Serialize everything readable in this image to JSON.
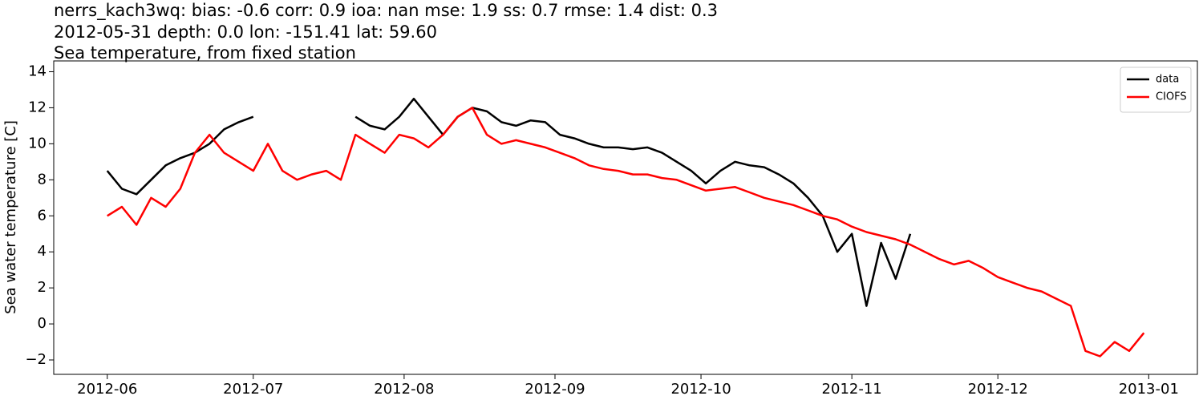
{
  "chart_data": {
    "type": "line",
    "title": "nerrs_kach3wq: bias: -0.6  corr: 0.9  ioa: nan  mse: 1.9  ss: 0.7  rmse: 1.4  dist: 0.3",
    "subtitle": "2012-05-31 depth: 0.0 lon: -151.41 lat: 59.60",
    "subtitle2": "Sea temperature, from fixed station",
    "y_label": "Sea water temperature [C]",
    "x": [
      "2012-06-01",
      "2012-06-04",
      "2012-06-07",
      "2012-06-10",
      "2012-06-13",
      "2012-06-16",
      "2012-06-19",
      "2012-06-22",
      "2012-06-25",
      "2012-06-28",
      "2012-07-01",
      "2012-07-04",
      "2012-07-07",
      "2012-07-10",
      "2012-07-13",
      "2012-07-16",
      "2012-07-19",
      "2012-07-22",
      "2012-07-25",
      "2012-07-28",
      "2012-07-31",
      "2012-08-03",
      "2012-08-06",
      "2012-08-09",
      "2012-08-12",
      "2012-08-15",
      "2012-08-18",
      "2012-08-21",
      "2012-08-24",
      "2012-08-27",
      "2012-08-30",
      "2012-09-02",
      "2012-09-05",
      "2012-09-08",
      "2012-09-11",
      "2012-09-14",
      "2012-09-17",
      "2012-09-20",
      "2012-09-23",
      "2012-09-26",
      "2012-09-29",
      "2012-10-02",
      "2012-10-05",
      "2012-10-08",
      "2012-10-11",
      "2012-10-14",
      "2012-10-17",
      "2012-10-20",
      "2012-10-23",
      "2012-10-26",
      "2012-10-29",
      "2012-11-01",
      "2012-11-04",
      "2012-11-07",
      "2012-11-10",
      "2012-11-13",
      "2012-11-16",
      "2012-11-19",
      "2012-11-22",
      "2012-11-25",
      "2012-11-28",
      "2012-12-01",
      "2012-12-04",
      "2012-12-07",
      "2012-12-10",
      "2012-12-13",
      "2012-12-16",
      "2012-12-19",
      "2012-12-22",
      "2012-12-25",
      "2012-12-28",
      "2012-12-31"
    ],
    "series": [
      {
        "name": "data",
        "color": "#000000",
        "values": [
          8.5,
          7.5,
          7.2,
          8.0,
          8.8,
          9.2,
          9.5,
          10.0,
          10.8,
          11.2,
          11.5,
          null,
          null,
          null,
          null,
          null,
          null,
          11.5,
          11.0,
          10.8,
          11.5,
          12.5,
          11.5,
          10.5,
          11.5,
          12.0,
          11.8,
          11.2,
          11.0,
          11.3,
          11.2,
          10.5,
          10.3,
          10.0,
          9.8,
          9.8,
          9.7,
          9.8,
          9.5,
          9.0,
          8.5,
          7.8,
          8.5,
          9.0,
          8.8,
          8.7,
          8.3,
          7.8,
          7.0,
          6.0,
          4.0,
          5.0,
          1.0,
          4.5,
          2.5,
          5.0,
          null,
          null,
          null,
          null,
          null,
          null,
          null,
          null,
          null,
          null,
          null,
          null,
          null,
          null,
          null,
          null
        ]
      },
      {
        "name": "CIOFS",
        "color": "#ff0000",
        "values": [
          6.0,
          6.5,
          5.5,
          7.0,
          6.5,
          7.5,
          9.5,
          10.5,
          9.5,
          9.0,
          8.5,
          10.0,
          8.5,
          8.0,
          8.3,
          8.5,
          8.0,
          10.5,
          10.0,
          9.5,
          10.5,
          10.3,
          9.8,
          10.5,
          11.5,
          12.0,
          10.5,
          10.0,
          10.2,
          10.0,
          9.8,
          9.5,
          9.2,
          8.8,
          8.6,
          8.5,
          8.3,
          8.3,
          8.1,
          8.0,
          7.7,
          7.4,
          7.5,
          7.6,
          7.3,
          7.0,
          6.8,
          6.6,
          6.3,
          6.0,
          5.8,
          5.4,
          5.1,
          4.9,
          4.7,
          4.4,
          4.0,
          3.6,
          3.3,
          3.5,
          3.1,
          2.6,
          2.3,
          2.0,
          1.8,
          1.4,
          1.0,
          -1.5,
          -1.8,
          -1.0,
          -1.5,
          -0.5
        ]
      }
    ],
    "xlim": [
      "2012-05-21",
      "2013-01-11"
    ],
    "xticks": [
      "2012-06",
      "2012-07",
      "2012-08",
      "2012-09",
      "2012-10",
      "2012-11",
      "2012-12",
      "2013-01"
    ],
    "ylim": [
      -2.8,
      14.6
    ],
    "yticks": [
      {
        "value": -2,
        "label": "−2"
      },
      0,
      2,
      4,
      6,
      8,
      10,
      12,
      14
    ],
    "legend": "upper right"
  }
}
